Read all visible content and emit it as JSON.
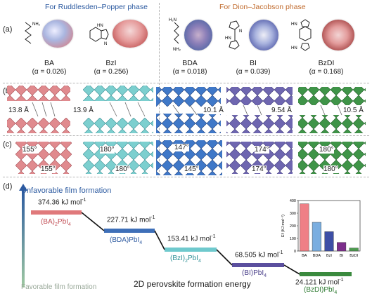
{
  "figure": {
    "headers": {
      "rp": "For Ruddlesden–Popper phase",
      "dj": "For Dion–Jacobson phase"
    },
    "panel_labels": {
      "a": "(a)",
      "b": "(b)",
      "c": "(c)",
      "d": "(d)"
    },
    "molecules": [
      {
        "name": "BA",
        "alpha": "(α = 0.026)"
      },
      {
        "name": "BzI",
        "alpha": "(α = 0.256)"
      },
      {
        "name": "BDA",
        "alpha": "(α = 0.018)"
      },
      {
        "name": "BI",
        "alpha": "(α = 0.039)"
      },
      {
        "name": "BzDI",
        "alpha": "(α = 0.168)"
      }
    ],
    "structures": {
      "spacings": [
        "13.8 Å",
        "13.9 Å",
        "10.1 Å",
        "9.54 Å",
        "10.5 Å"
      ],
      "angles": [
        {
          "top": "155°",
          "bottom": "155°"
        },
        {
          "top": "180°",
          "bottom": "180°"
        },
        {
          "top": "147°",
          "bottom": "145°"
        },
        {
          "top": "174°",
          "bottom": "174°"
        },
        {
          "top": "180°",
          "bottom": "180°"
        }
      ]
    },
    "energy": {
      "top_label": "Unfavorable film formation",
      "bottom_label": "Favorable film formation",
      "axis_title": "2D perovskite formation energy",
      "levels": [
        {
          "value": "374.36",
          "phase": "(BA)",
          "sub1": "2",
          "rest": "PbI",
          "sub2": "4",
          "color": "#e0797b"
        },
        {
          "value": "227.71",
          "phase": "(BDA)PbI",
          "sub1": "",
          "rest": "",
          "sub2": "4",
          "color": "#3e6fb8"
        },
        {
          "value": "153.41",
          "phase": "(BzI)",
          "sub1": "2",
          "rest": "PbI",
          "sub2": "4",
          "color": "#6fc9cd"
        },
        {
          "value": "68.505",
          "phase": "(BI)PbI",
          "sub1": "",
          "rest": "",
          "sub2": "4",
          "color": "#5b4f9e"
        },
        {
          "value": "24.121",
          "phase": "(BzDI)PbI",
          "sub1": "",
          "rest": "",
          "sub2": "4",
          "color": "#3a8a3e"
        }
      ],
      "unit": "kJ mol",
      "unit_sup": "-1"
    }
  },
  "chart_data": {
    "type": "bar",
    "ylabel": "Ef (KJ mol⁻¹)",
    "categories": [
      "BA",
      "BDA",
      "BzI",
      "BI",
      "BzDI"
    ],
    "values": [
      374.36,
      227.71,
      153.41,
      68.505,
      24.121
    ],
    "colors": [
      "#ef7f86",
      "#7aaee0",
      "#3d4fa6",
      "#7d2e8c",
      "#4d9a4f"
    ],
    "ylim": [
      0,
      400
    ],
    "yticks": [
      "0",
      "100",
      "200",
      "300",
      "400"
    ]
  }
}
